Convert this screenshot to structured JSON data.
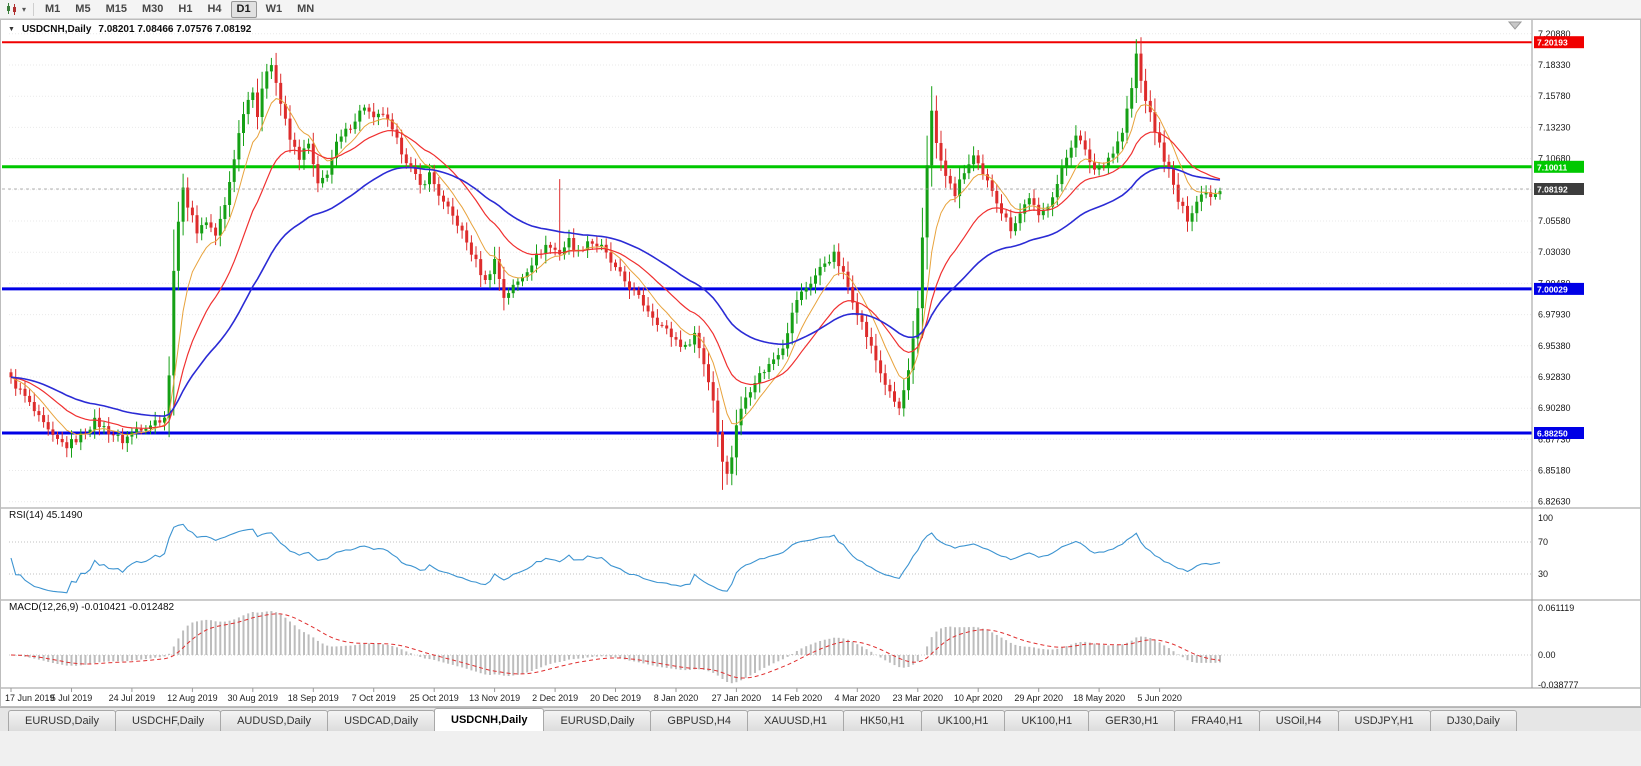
{
  "toolbar": {
    "timeframes": [
      "M1",
      "M5",
      "M15",
      "M30",
      "H1",
      "H4",
      "D1",
      "W1",
      "MN"
    ],
    "active_timeframe": "D1"
  },
  "chart": {
    "title_symbol": "USDCNH,Daily",
    "title_ohlc": "7.08201 7.08466 7.07576 7.08192"
  },
  "rsi": {
    "label": "RSI(14) 45.1490",
    "ticks": [
      "100",
      "70",
      "30"
    ]
  },
  "macd": {
    "label": "MACD(12,26,9) -0.010421 -0.012482",
    "ticks": [
      "0.061119",
      "0.00",
      "-0.038777"
    ]
  },
  "tabs": {
    "items": [
      "EURUSD,Daily",
      "USDCHF,Daily",
      "AUDUSD,Daily",
      "USDCAD,Daily",
      "USDCNH,Daily",
      "EURUSD,Daily",
      "GBPUSD,H4",
      "XAUUSD,H1",
      "HK50,H1",
      "UK100,H1",
      "UK100,H1",
      "GER30,H1",
      "FRA40,H1",
      "USOil,H4",
      "USDJPY,H1",
      "DJ30,Daily"
    ],
    "active_index": 4
  },
  "chart_data": {
    "type": "candlestick",
    "symbol": "USDCNH",
    "timeframe": "Daily",
    "ohlc_display": {
      "open": "7.08201",
      "high": "7.08466",
      "low": "7.07576",
      "close": "7.08192"
    },
    "y_axis": {
      "min": 6.822,
      "max": 7.216,
      "ticks": [
        "7.20880",
        "7.18330",
        "7.15780",
        "7.13230",
        "7.10680",
        "7.08130",
        "7.05580",
        "7.03030",
        "7.00480",
        "6.97930",
        "6.95380",
        "6.92830",
        "6.90280",
        "6.87730",
        "6.85180",
        "6.82630"
      ]
    },
    "x_axis": {
      "labels": [
        "17 Jun 2019",
        "5 Jul 2019",
        "24 Jul 2019",
        "12 Aug 2019",
        "30 Aug 2019",
        "18 Sep 2019",
        "7 Oct 2019",
        "25 Oct 2019",
        "13 Nov 2019",
        "2 Dec 2019",
        "20 Dec 2019",
        "8 Jan 2020",
        "27 Jan 2020",
        "14 Feb 2020",
        "4 Mar 2020",
        "23 Mar 2020",
        "10 Apr 2020",
        "29 Apr 2020",
        "18 May 2020",
        "5 Jun 2020"
      ],
      "label_bar_indices": [
        0,
        13,
        26,
        39,
        52,
        65,
        78,
        91,
        104,
        117,
        130,
        143,
        156,
        169,
        182,
        195,
        208,
        221,
        234,
        247
      ]
    },
    "bars_count": 261,
    "close_anchors": [
      [
        0,
        6.926
      ],
      [
        3,
        6.912
      ],
      [
        6,
        6.894
      ],
      [
        9,
        6.878
      ],
      [
        12,
        6.872
      ],
      [
        15,
        6.88
      ],
      [
        18,
        6.892
      ],
      [
        21,
        6.884
      ],
      [
        24,
        6.876
      ],
      [
        27,
        6.886
      ],
      [
        30,
        6.89
      ],
      [
        33,
        6.896
      ],
      [
        34,
        6.928
      ],
      [
        35,
        7.018
      ],
      [
        36,
        7.052
      ],
      [
        37,
        7.086
      ],
      [
        38,
        7.068
      ],
      [
        40,
        7.048
      ],
      [
        42,
        7.056
      ],
      [
        44,
        7.044
      ],
      [
        46,
        7.068
      ],
      [
        48,
        7.108
      ],
      [
        50,
        7.146
      ],
      [
        52,
        7.164
      ],
      [
        53,
        7.142
      ],
      [
        55,
        7.18
      ],
      [
        56,
        7.186
      ],
      [
        58,
        7.152
      ],
      [
        60,
        7.122
      ],
      [
        62,
        7.108
      ],
      [
        64,
        7.118
      ],
      [
        66,
        7.084
      ],
      [
        68,
        7.096
      ],
      [
        70,
        7.118
      ],
      [
        73,
        7.134
      ],
      [
        76,
        7.15
      ],
      [
        78,
        7.138
      ],
      [
        80,
        7.144
      ],
      [
        82,
        7.128
      ],
      [
        85,
        7.106
      ],
      [
        88,
        7.084
      ],
      [
        90,
        7.094
      ],
      [
        93,
        7.07
      ],
      [
        96,
        7.054
      ],
      [
        99,
        7.03
      ],
      [
        102,
        7.006
      ],
      [
        104,
        7.024
      ],
      [
        106,
        6.994
      ],
      [
        109,
        7.006
      ],
      [
        112,
        7.022
      ],
      [
        115,
        7.036
      ],
      [
        118,
        7.03
      ],
      [
        120,
        7.04
      ],
      [
        122,
        7.03
      ],
      [
        124,
        7.04
      ],
      [
        127,
        7.034
      ],
      [
        130,
        7.016
      ],
      [
        133,
        7.002
      ],
      [
        136,
        6.988
      ],
      [
        139,
        6.974
      ],
      [
        142,
        6.962
      ],
      [
        145,
        6.952
      ],
      [
        147,
        6.964
      ],
      [
        149,
        6.94
      ],
      [
        151,
        6.91
      ],
      [
        152,
        6.884
      ],
      [
        153,
        6.862
      ],
      [
        154,
        6.848
      ],
      [
        155,
        6.864
      ],
      [
        156,
        6.89
      ],
      [
        158,
        6.912
      ],
      [
        160,
        6.926
      ],
      [
        163,
        6.938
      ],
      [
        166,
        6.954
      ],
      [
        169,
        6.992
      ],
      [
        172,
        7.006
      ],
      [
        175,
        7.022
      ],
      [
        177,
        7.028
      ],
      [
        179,
        7.012
      ],
      [
        181,
        6.992
      ],
      [
        183,
        6.972
      ],
      [
        185,
        6.952
      ],
      [
        187,
        6.932
      ],
      [
        189,
        6.914
      ],
      [
        191,
        6.902
      ],
      [
        193,
        6.932
      ],
      [
        195,
        6.982
      ],
      [
        196,
        7.042
      ],
      [
        197,
        7.102
      ],
      [
        198,
        7.148
      ],
      [
        199,
        7.118
      ],
      [
        201,
        7.092
      ],
      [
        203,
        7.078
      ],
      [
        205,
        7.096
      ],
      [
        207,
        7.108
      ],
      [
        209,
        7.092
      ],
      [
        211,
        7.082
      ],
      [
        213,
        7.064
      ],
      [
        215,
        7.05
      ],
      [
        217,
        7.062
      ],
      [
        219,
        7.076
      ],
      [
        221,
        7.058
      ],
      [
        223,
        7.07
      ],
      [
        225,
        7.086
      ],
      [
        227,
        7.108
      ],
      [
        229,
        7.128
      ],
      [
        231,
        7.112
      ],
      [
        233,
        7.098
      ],
      [
        235,
        7.104
      ],
      [
        237,
        7.112
      ],
      [
        239,
        7.128
      ],
      [
        241,
        7.164
      ],
      [
        242,
        7.192
      ],
      [
        243,
        7.17
      ],
      [
        245,
        7.142
      ],
      [
        247,
        7.118
      ],
      [
        249,
        7.096
      ],
      [
        251,
        7.072
      ],
      [
        253,
        7.058
      ],
      [
        255,
        7.072
      ],
      [
        257,
        7.082
      ],
      [
        258,
        7.076
      ],
      [
        259,
        7.08
      ],
      [
        260,
        7.082
      ]
    ],
    "wick_events": [
      {
        "index": 118,
        "high": 7.09
      },
      {
        "index": 153,
        "low": 6.836
      },
      {
        "index": 198,
        "high": 7.166
      }
    ],
    "horizontal_lines": [
      {
        "price": 7.20193,
        "label": "7.20193",
        "color": "#f00000",
        "width": 2
      },
      {
        "price": 7.10011,
        "label": "7.10011",
        "color": "#00c800",
        "width": 3
      },
      {
        "price": 7.00029,
        "label": "7.00029",
        "color": "#0000e6",
        "width": 3
      },
      {
        "price": 6.8825,
        "label": "6.88250",
        "color": "#0000e6",
        "width": 3
      }
    ],
    "last_price": {
      "value": 7.08192,
      "label": "7.08192"
    },
    "moving_averages": [
      {
        "period": 8,
        "type": "ema",
        "color_key": "ma_fast"
      },
      {
        "period": 20,
        "type": "ema",
        "color_key": "ma_medium"
      },
      {
        "period": 45,
        "type": "ema",
        "color_key": "ma_slow"
      }
    ],
    "indicators": [
      {
        "name": "RSI",
        "params": "14",
        "value": "45.1490"
      },
      {
        "name": "MACD",
        "params": "12,26,9",
        "values": "-0.010421 -0.012482"
      }
    ],
    "colors": {
      "up_candle": "#15a015",
      "down_candle": "#dd2c2c",
      "ma_fast": "#e8a33d",
      "ma_medium": "#f03030",
      "ma_slow": "#2b2bd5",
      "rsi_line": "#3d94d1",
      "macd_histogram": "#bdbdbd",
      "macd_signal": "#e03030",
      "grid": "#e9e9e9",
      "last_price_bg": "#3c3c3c"
    }
  }
}
